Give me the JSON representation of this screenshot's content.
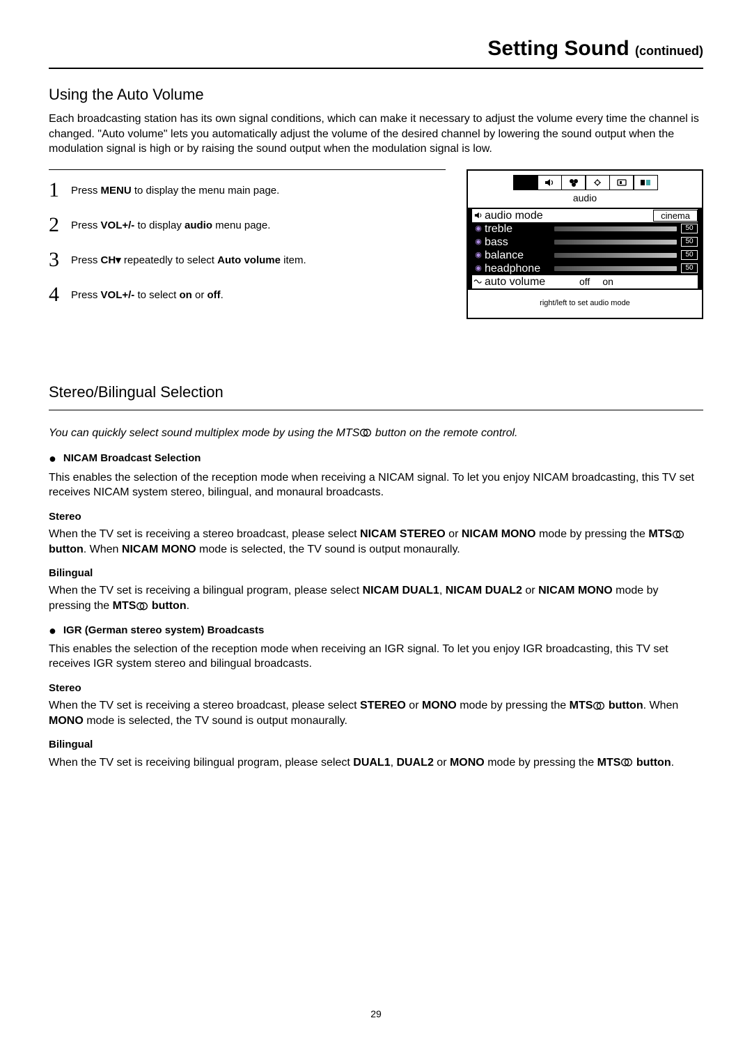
{
  "header": {
    "title_big": "Setting Sound ",
    "title_small": "(continued)"
  },
  "section1": {
    "title": "Using the Auto Volume",
    "intro": "Each broadcasting station has its own signal conditions, which can make it necessary to adjust the volume every time the channel is changed. \"Auto volume\" lets you automatically adjust the volume of the desired channel by lowering the sound output when the modulation signal is high or by raising the sound output when the modulation signal is low.",
    "steps": [
      {
        "n": "1",
        "pre": "Press ",
        "b1": "MENU",
        "post": " to display the menu main page."
      },
      {
        "n": "2",
        "pre": "Press ",
        "b1": "VOL+/-",
        "mid": " to display ",
        "b2": "audio",
        "post": " menu page."
      },
      {
        "n": "3",
        "pre": "Press ",
        "b1": "CH▾",
        "mid": " repeatedly to select ",
        "b2": "Auto volume",
        "post": " item."
      },
      {
        "n": "4",
        "pre": "Press ",
        "b1": "VOL+/-",
        "mid": " to select ",
        "b2": "on",
        "mid2": " or ",
        "b3": "off",
        "post": "."
      }
    ]
  },
  "osd": {
    "tab_label": "audio",
    "rows": [
      {
        "icon": "speaker",
        "label": "audio mode",
        "type": "mode",
        "value": "cinema",
        "inverted": true
      },
      {
        "icon": "dot",
        "label": "treble",
        "type": "slider",
        "value": "50"
      },
      {
        "icon": "dot",
        "label": "bass",
        "type": "slider",
        "value": "50"
      },
      {
        "icon": "dot",
        "label": "balance",
        "type": "slider",
        "value": "50"
      },
      {
        "icon": "dot",
        "label": "headphone",
        "type": "slider",
        "value": "50"
      },
      {
        "icon": "wave",
        "label": "auto volume",
        "type": "toggle",
        "off": "off",
        "on": "on",
        "inverted": true
      }
    ],
    "hint": "right/left to set audio mode"
  },
  "section2": {
    "title": "Stereo/Bilingual Selection",
    "note_pre": "You can quickly select sound multiplex mode by using the MTS",
    "note_post": " button on the remote control.",
    "nicam": {
      "heading": "NICAM Broadcast Selection",
      "para": "This enables the selection of the reception mode when receiving a NICAM signal. To let you enjoy NICAM broadcasting, this TV set receives NICAM system stereo, bilingual, and monaural broadcasts.",
      "stereo_h": "Stereo",
      "stereo_p_a": "When the TV set is receiving a stereo broadcast, please select ",
      "stereo_b1": "NICAM STEREO",
      "stereo_mid1": " or ",
      "stereo_b2": "NICAM MONO",
      "stereo_mid2": " mode by pressing the ",
      "stereo_b3a": "MTS",
      "stereo_b3b": " button",
      "stereo_mid3": ". When ",
      "stereo_b4": "NICAM MONO",
      "stereo_tail": " mode is selected, the TV sound is output monaurally.",
      "bili_h": "Bilingual",
      "bili_a": "When the TV set is receiving a bilingual program, please select ",
      "bili_b1": "NICAM DUAL1",
      "bili_m1": ", ",
      "bili_b2": "NICAM DUAL2",
      "bili_m2": " or ",
      "bili_b3": "NICAM MONO",
      "bili_m3": " mode by pressing the ",
      "bili_b4a": "MTS",
      "bili_b4b": " button",
      "bili_tail": "."
    },
    "igr": {
      "heading": "IGR (German stereo system) Broadcasts",
      "para": "This enables the selection of the reception mode when receiving an IGR signal. To let you enjoy IGR broadcasting, this TV set receives IGR system stereo and bilingual broadcasts.",
      "stereo_h": "Stereo",
      "st_a": "When the TV set is receiving a stereo broadcast, please select ",
      "st_b1": "STEREO",
      "st_m1": " or ",
      "st_b2": "MONO",
      "st_m2": " mode by pressing the ",
      "st_b3a": "MTS",
      "st_b3b": " button",
      "st_m3": ". When ",
      "st_b4": "MONO",
      "st_tail": " mode is selected, the TV sound is output monaurally.",
      "bili_h": "Bilingual",
      "bi_a": "When the TV set is receiving bilingual program, please select ",
      "bi_b1": "DUAL1",
      "bi_m1": ", ",
      "bi_b2": "DUAL2",
      "bi_m2": " or ",
      "bi_b3": "MONO",
      "bi_m3": " mode by pressing the ",
      "bi_b4a": "MTS",
      "bi_b4b": " button",
      "bi_tail": "."
    }
  },
  "page_number": "29"
}
